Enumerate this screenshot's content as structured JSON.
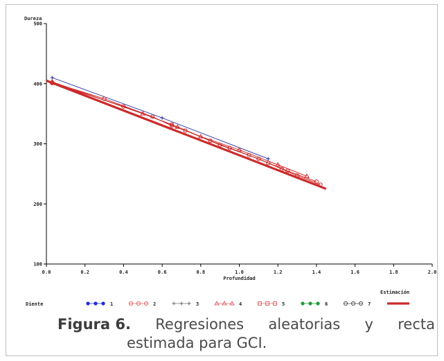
{
  "chart_data": {
    "type": "scatter",
    "ylabel_top": "Dureza",
    "xlabel": "Profundidad",
    "xlim": [
      0.0,
      2.0
    ],
    "ylim": [
      100,
      500
    ],
    "xticks": [
      "0.0",
      "0.2",
      "0.4",
      "0.6",
      "0.8",
      "1.0",
      "1.2",
      "1.4",
      "1.6",
      "1.8",
      "2.0"
    ],
    "xtick_values": [
      0.0,
      0.2,
      0.4,
      0.6,
      0.8,
      1.0,
      1.2,
      1.4,
      1.6,
      1.8,
      2.0
    ],
    "yticks": [
      "100",
      "200",
      "300",
      "400",
      "500"
    ],
    "ytick_values": [
      100,
      200,
      300,
      400,
      500
    ],
    "legend_title": "Diente",
    "legend": [
      {
        "label": "1",
        "marker": "dot-filled",
        "color": "#1b2bd6"
      },
      {
        "label": "2",
        "marker": "circle-open",
        "color": "#e06a6a"
      },
      {
        "label": "3",
        "marker": "plus",
        "color": "#777777"
      },
      {
        "label": "4",
        "marker": "triangle",
        "color": "#e06a6a"
      },
      {
        "label": "5",
        "marker": "square",
        "color": "#e06a6a"
      },
      {
        "label": "6",
        "marker": "dot-filled",
        "color": "#1f9a3a"
      },
      {
        "label": "7",
        "marker": "circle-open",
        "color": "#555555"
      }
    ],
    "estimation_label": "Estimación",
    "estimation_color": "#cc2a2a",
    "series": [
      {
        "name": "3",
        "color": "#3340a8",
        "marker": "plus",
        "x": [
          0.03,
          0.6,
          1.15
        ],
        "y": [
          410,
          343,
          275
        ]
      },
      {
        "name": "1",
        "color": "#cc2a2a",
        "marker": "circle-open",
        "x": [
          0.03,
          0.3,
          0.55,
          0.65,
          0.72,
          0.85,
          0.95,
          1.05,
          1.15,
          1.22,
          1.3,
          1.42
        ],
        "y": [
          402,
          375,
          345,
          330,
          322,
          305,
          293,
          281,
          268,
          258,
          247,
          232
        ]
      },
      {
        "name": "2",
        "color": "#cc2a2a",
        "marker": "circle-open",
        "x": [
          0.03,
          0.4,
          0.65,
          0.9,
          1.1,
          1.25,
          1.4
        ],
        "y": [
          401,
          362,
          332,
          298,
          275,
          255,
          237
        ]
      },
      {
        "name": "4",
        "color": "#cc2a2a",
        "marker": "triangle",
        "x": [
          0.03,
          0.5,
          0.68,
          0.8,
          1.0,
          1.2,
          1.35
        ],
        "y": [
          403,
          350,
          328,
          312,
          290,
          265,
          246
        ]
      }
    ],
    "estimation_line": {
      "x": [
        0.0,
        1.45
      ],
      "y": [
        405,
        225
      ]
    }
  },
  "caption": {
    "lead": "Figura 6.",
    "words": [
      "Regresiones",
      "aleatorias",
      "y",
      "recta"
    ],
    "line2": "estimada para GCI."
  }
}
